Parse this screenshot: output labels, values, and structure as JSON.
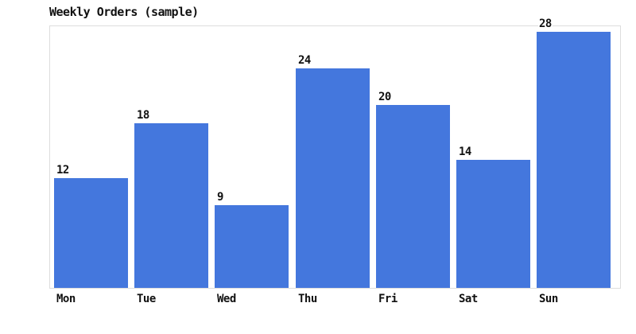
{
  "chart_data": {
    "type": "bar",
    "title": "Weekly Orders (sample)",
    "categories": [
      "Mon",
      "Tue",
      "Wed",
      "Thu",
      "Fri",
      "Sat",
      "Sun"
    ],
    "values": [
      12,
      18,
      9,
      24,
      20,
      14,
      28
    ],
    "xlabel": "",
    "ylabel": "",
    "ylim": [
      0,
      28.6
    ],
    "grid": false,
    "legend": false,
    "value_labels_shown": true,
    "colors": {
      "bar": "#4477DD",
      "plot_border": "#DDDDDD",
      "background": "#FFFFFF",
      "text": "#111111"
    }
  }
}
